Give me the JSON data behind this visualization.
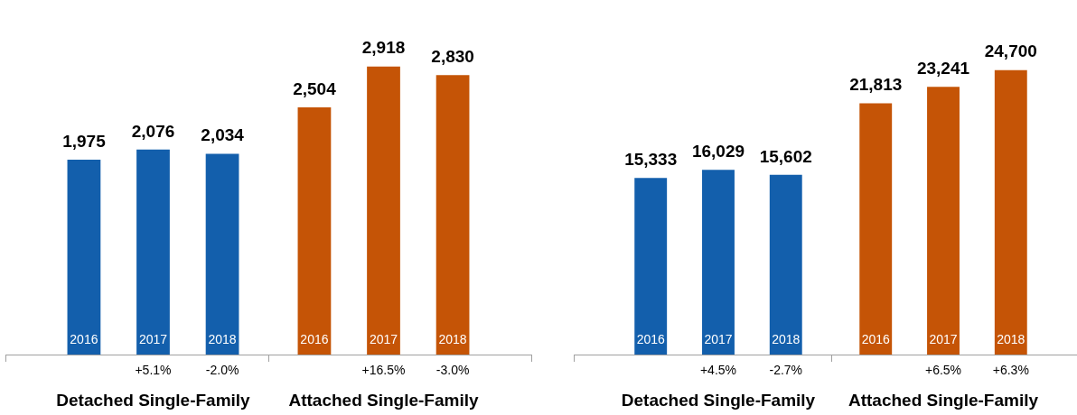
{
  "chart_data": [
    {
      "type": "bar",
      "categories": [
        "2016",
        "2017",
        "2018",
        "2016",
        "2017",
        "2018"
      ],
      "series": [
        {
          "name": "Detached Single-Family",
          "color": "#135fac",
          "values": [
            1975,
            2076,
            2034,
            null,
            null,
            null
          ],
          "value_labels": [
            "1,975",
            "2,076",
            "2,034",
            null,
            null,
            null
          ]
        },
        {
          "name": "Attached Single-Family",
          "color": "#c55406",
          "values": [
            null,
            null,
            null,
            2504,
            2918,
            2830
          ],
          "value_labels": [
            null,
            null,
            null,
            "2,504",
            "2,918",
            "2,830"
          ]
        }
      ],
      "annotations": [
        "+5.1%",
        "-2.0%",
        "+16.5%",
        "-3.0%"
      ]
    },
    {
      "type": "bar",
      "categories": [
        "2016",
        "2017",
        "2018",
        "2016",
        "2017",
        "2018"
      ],
      "series": [
        {
          "name": "Detached Single-Family",
          "color": "#135fac",
          "values": [
            15333,
            16029,
            15602,
            null,
            null,
            null
          ],
          "value_labels": [
            "15,333",
            "16,029",
            "15,602",
            null,
            null,
            null
          ]
        },
        {
          "name": "Attached Single-Family",
          "color": "#c55406",
          "values": [
            null,
            null,
            null,
            21813,
            23241,
            24700
          ],
          "value_labels": [
            null,
            null,
            null,
            "21,813",
            "23,241",
            "24,700"
          ]
        }
      ],
      "annotations": [
        "+4.5%",
        "-2.7%",
        "+6.5%",
        "+6.3%"
      ]
    }
  ]
}
